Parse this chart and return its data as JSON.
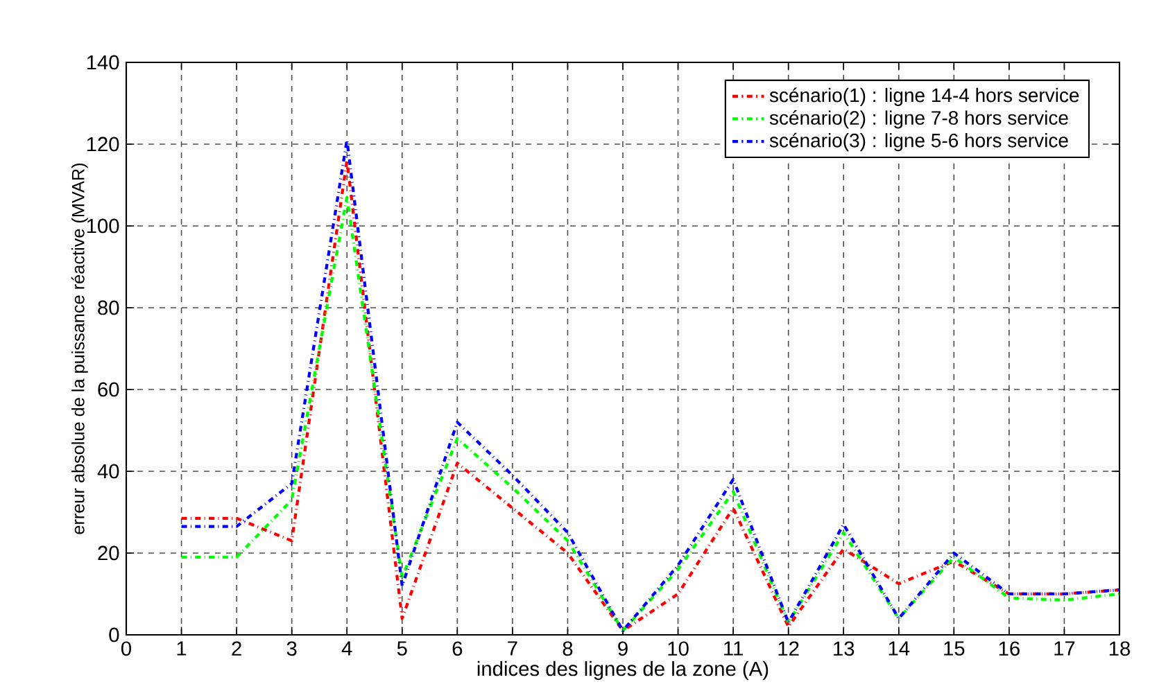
{
  "chart_data": {
    "type": "line",
    "xlabel": "indices des lignes de la zone (A)",
    "ylabel": "erreur absolue de la puissance réactive (MVAR)",
    "x": [
      1,
      2,
      3,
      4,
      5,
      6,
      7,
      8,
      9,
      10,
      11,
      12,
      13,
      14,
      15,
      16,
      17,
      18
    ],
    "series": [
      {
        "name": "scénario(1) : ligne 14-4 hors service",
        "color": "#ff0000",
        "values": [
          28.5,
          28.5,
          23,
          116,
          4,
          42,
          31,
          20,
          1,
          10,
          31,
          2,
          21,
          12.5,
          18,
          10,
          10,
          11
        ]
      },
      {
        "name": "scénario(2) : ligne 7-8 hors service",
        "color": "#00ff00",
        "values": [
          19,
          19,
          33,
          107,
          14,
          48,
          36,
          23,
          1,
          16,
          35,
          3,
          25,
          4,
          19,
          9,
          8.5,
          10
        ]
      },
      {
        "name": "scénario(3) : ligne 5-6 hors service",
        "color": "#0000ff",
        "values": [
          26.5,
          26.5,
          37,
          121,
          12,
          52,
          39,
          25,
          1,
          17,
          38,
          3,
          27,
          4,
          20,
          10,
          10,
          11
        ]
      }
    ],
    "xlim": [
      0,
      18
    ],
    "xticks": [
      0,
      1,
      2,
      3,
      4,
      5,
      6,
      7,
      8,
      9,
      10,
      11,
      12,
      13,
      14,
      15,
      16,
      17,
      18
    ],
    "ylim": [
      0,
      140
    ],
    "yticks": [
      0,
      20,
      40,
      60,
      80,
      100,
      120,
      140
    ],
    "grid": true,
    "legend": "top right",
    "marker": "none",
    "line_style": "dashdot"
  }
}
